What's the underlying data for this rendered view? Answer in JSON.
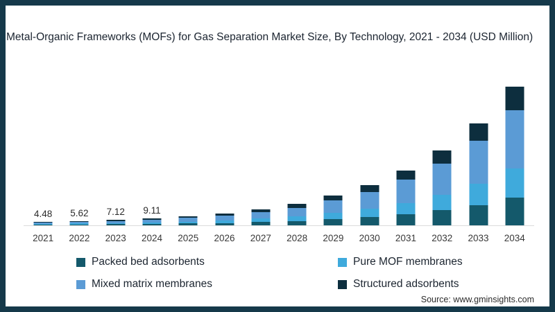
{
  "title": "Metal-Organic Frameworks (MOFs) for Gas Separation Market Size, By Technology, 2021 - 2034 (USD Million)",
  "source_note": "Source: www.gminsights.com",
  "colors": {
    "frame_border": "#15394A",
    "axis_line": "#DCDCDC",
    "packed_bed_adsorbents": "#14596B",
    "pure_mof_membranes": "#3FAADC",
    "mixed_matrix_membranes": "#5B9BD5",
    "structured_adsorbents": "#0D2E3E"
  },
  "legend": {
    "items": [
      {
        "label": "Packed bed adsorbents",
        "color": "#14596B"
      },
      {
        "label": "Pure MOF membranes",
        "color": "#3FAADC"
      },
      {
        "label": "Mixed matrix membranes",
        "color": "#5B9BD5"
      },
      {
        "label": "Structured adsorbents",
        "color": "#0D2E3E"
      }
    ]
  },
  "chart_data": {
    "type": "bar",
    "stacked": true,
    "unit": "USD Million",
    "title": "Metal-Organic Frameworks (MOFs) for Gas Separation Market Size, By Technology, 2021 - 2034 (USD Million)",
    "xlabel": "",
    "ylabel": "",
    "y_axis_shown": false,
    "grid": false,
    "legend_position": "bottom",
    "categories": [
      {
        "year": "2021",
        "value_label": "4.48"
      },
      {
        "year": "2022",
        "value_label": "5.62"
      },
      {
        "year": "2023",
        "value_label": "7.12"
      },
      {
        "year": "2024",
        "value_label": "9.11"
      },
      {
        "year": "2025",
        "value_label": null
      },
      {
        "year": "2026",
        "value_label": null
      },
      {
        "year": "2027",
        "value_label": null
      },
      {
        "year": "2028",
        "value_label": null
      },
      {
        "year": "2029",
        "value_label": null
      },
      {
        "year": "2030",
        "value_label": null
      },
      {
        "year": "2031",
        "value_label": null
      },
      {
        "year": "2032",
        "value_label": null
      },
      {
        "year": "2033",
        "value_label": null
      },
      {
        "year": "2034",
        "value_label": null
      }
    ],
    "totals": [
      4.48,
      5.62,
      7.12,
      9.11,
      11.6,
      15.1,
      21.2,
      27.9,
      39.1,
      52.5,
      71.8,
      97.9,
      133.6,
      181.8
    ],
    "series": [
      {
        "name": "Packed bed adsorbents",
        "color": "#14596B",
        "values": [
          0.9,
          1.12,
          1.42,
          1.82,
          2.32,
          3.02,
          4.24,
          5.58,
          7.82,
          10.5,
          14.36,
          19.58,
          26.72,
          36.36
        ]
      },
      {
        "name": "Pure MOF membranes",
        "color": "#3FAADC",
        "values": [
          0.94,
          1.18,
          1.5,
          1.91,
          2.44,
          3.17,
          4.45,
          5.86,
          8.21,
          11.03,
          15.08,
          20.56,
          28.06,
          38.18
        ]
      },
      {
        "name": "Mixed matrix membranes",
        "color": "#5B9BD5",
        "values": [
          1.88,
          2.36,
          2.99,
          3.83,
          4.87,
          6.34,
          8.9,
          11.72,
          16.42,
          22.05,
          30.16,
          41.12,
          56.11,
          76.36
        ]
      },
      {
        "name": "Structured adsorbents",
        "color": "#0D2E3E",
        "values": [
          0.76,
          0.96,
          1.21,
          1.55,
          1.97,
          2.57,
          3.6,
          4.74,
          6.65,
          8.93,
          12.21,
          16.64,
          22.71,
          30.91
        ]
      }
    ]
  }
}
